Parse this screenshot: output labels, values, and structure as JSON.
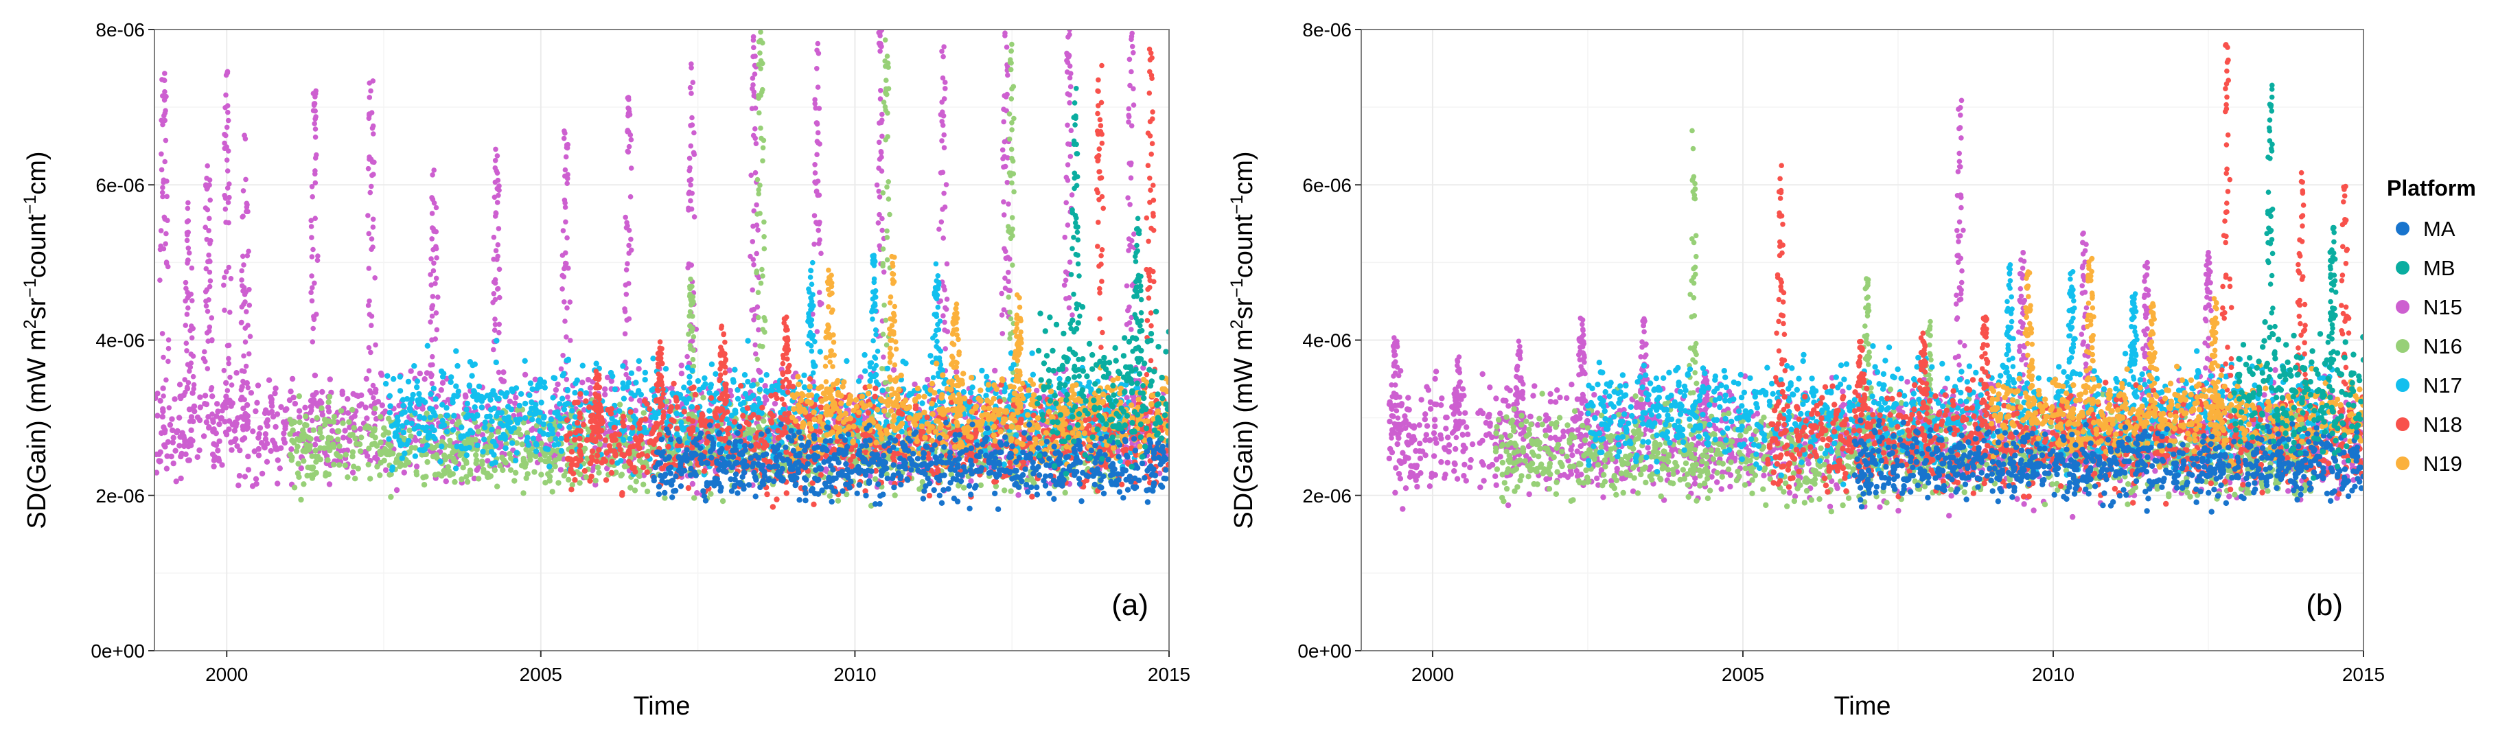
{
  "colors": {
    "MA": "#1874CD",
    "MB": "#0AADA0",
    "N15": "#CD5FD0",
    "N16": "#97D077",
    "N17": "#12BFEE",
    "N18": "#F8514B",
    "N19": "#FBB13C",
    "grid": "#EBEBEB",
    "frame": "#7F7F7F"
  },
  "legend": {
    "title": "Platform",
    "items": [
      {
        "key": "MA",
        "label": "MA"
      },
      {
        "key": "MB",
        "label": "MB"
      },
      {
        "key": "N15",
        "label": "N15"
      },
      {
        "key": "N16",
        "label": "N16"
      },
      {
        "key": "N17",
        "label": "N17"
      },
      {
        "key": "N18",
        "label": "N18"
      },
      {
        "key": "N19",
        "label": "N19"
      }
    ]
  },
  "chart_data": [
    {
      "type": "scatter",
      "panel_label": "(a)",
      "xlabel": "Time",
      "ylabel_main": "SD(Gain) (mW m",
      "ylabel_sup1": "2",
      "ylabel_mid1": "sr",
      "ylabel_sup2": "−1",
      "ylabel_mid2": "count",
      "ylabel_sup3": "−1",
      "ylabel_end": "cm)",
      "xlim": [
        1998.85,
        2015.0
      ],
      "ylim": [
        0,
        8e-06
      ],
      "x_ticks": [
        2000,
        2005,
        2010,
        2015
      ],
      "x_tick_labels": [
        "2000",
        "2005",
        "2010",
        "2015"
      ],
      "y_ticks": [
        0,
        2e-06,
        4e-06,
        6e-06,
        8e-06
      ],
      "y_tick_labels": [
        "0e+00",
        "2e-06",
        "4e-06",
        "6e-06",
        "8e-06"
      ],
      "grid": true,
      "series": [
        {
          "name": "N15",
          "x_range": [
            1998.85,
            2015.0
          ],
          "baseline": [
            2.1e-06,
            3.6e-06
          ],
          "peaks": [
            [
              1999.0,
              7.7e-06
            ],
            [
              1999.4,
              5.8e-06
            ],
            [
              1999.7,
              6.3e-06
            ],
            [
              2000.0,
              7.5e-06
            ],
            [
              2000.3,
              6.9e-06
            ],
            [
              2001.4,
              7.4e-06
            ],
            [
              2002.3,
              7.5e-06
            ],
            [
              2003.3,
              6.2e-06
            ],
            [
              2004.3,
              6.5e-06
            ],
            [
              2005.4,
              6.8e-06
            ],
            [
              2006.4,
              7.2e-06
            ],
            [
              2007.4,
              7.6e-06
            ],
            [
              2008.4,
              8e-06
            ],
            [
              2009.4,
              8e-06
            ],
            [
              2010.4,
              8e-06
            ],
            [
              2011.4,
              8e-06
            ],
            [
              2012.4,
              8e-06
            ],
            [
              2013.4,
              8e-06
            ],
            [
              2014.4,
              8e-06
            ]
          ]
        },
        {
          "name": "N16",
          "x_range": [
            2001.0,
            2014.2
          ],
          "baseline": [
            2e-06,
            3.2e-06
          ],
          "peaks": [
            [
              2007.4,
              4.8e-06
            ],
            [
              2008.5,
              8e-06
            ],
            [
              2010.5,
              7.9e-06
            ],
            [
              2012.5,
              7.9e-06
            ]
          ]
        },
        {
          "name": "N17",
          "x_range": [
            2002.5,
            2014.5
          ],
          "baseline": [
            2.3e-06,
            3.8e-06
          ],
          "peaks": [
            [
              2009.3,
              5e-06
            ],
            [
              2010.3,
              5.1e-06
            ],
            [
              2011.3,
              5e-06
            ]
          ]
        },
        {
          "name": "N18",
          "x_range": [
            2005.4,
            2015.0
          ],
          "baseline": [
            2e-06,
            3.4e-06
          ],
          "peaks": [
            [
              2005.9,
              3.6e-06
            ],
            [
              2006.9,
              4e-06
            ],
            [
              2007.9,
              4.2e-06
            ],
            [
              2008.9,
              4.3e-06
            ],
            [
              2013.9,
              7.9e-06
            ],
            [
              2014.7,
              7.8e-06
            ]
          ]
        },
        {
          "name": "N19",
          "x_range": [
            2009.0,
            2015.0
          ],
          "baseline": [
            2.4e-06,
            3.6e-06
          ],
          "peaks": [
            [
              2009.6,
              5e-06
            ],
            [
              2010.6,
              5.1e-06
            ],
            [
              2011.6,
              4.5e-06
            ],
            [
              2012.6,
              4.6e-06
            ]
          ]
        },
        {
          "name": "MA",
          "x_range": [
            2006.8,
            2015.0
          ],
          "baseline": [
            1.9e-06,
            2.9e-06
          ],
          "peaks": []
        },
        {
          "name": "MB",
          "x_range": [
            2012.9,
            2015.0
          ],
          "baseline": [
            2.3e-06,
            4.3e-06
          ],
          "peaks": [
            [
              2013.5,
              7.3e-06
            ],
            [
              2014.5,
              5.6e-06
            ]
          ]
        }
      ]
    },
    {
      "type": "scatter",
      "panel_label": "(b)",
      "xlabel": "Time",
      "ylabel_main": "SD(Gain) (mW m",
      "ylabel_sup1": "2",
      "ylabel_mid1": "sr",
      "ylabel_sup2": "−1",
      "ylabel_mid2": "count",
      "ylabel_sup3": "−1",
      "ylabel_end": "cm)",
      "xlim": [
        1998.85,
        2015.0
      ],
      "ylim": [
        0,
        8e-06
      ],
      "x_ticks": [
        2000,
        2005,
        2010,
        2015
      ],
      "x_tick_labels": [
        "2000",
        "2005",
        "2010",
        "2015"
      ],
      "y_ticks": [
        0,
        2e-06,
        4e-06,
        6e-06,
        8e-06
      ],
      "y_tick_labels": [
        "0e+00",
        "2e-06",
        "4e-06",
        "6e-06",
        "8e-06"
      ],
      "grid": true,
      "series": [
        {
          "name": "N15",
          "x_range": [
            1999.3,
            2015.0
          ],
          "baseline": [
            1.9e-06,
            3.5e-06
          ],
          "peaks": [
            [
              1999.4,
              4.1e-06
            ],
            [
              2000.4,
              3.8e-06
            ],
            [
              2001.4,
              4e-06
            ],
            [
              2002.4,
              4.3e-06
            ],
            [
              2003.4,
              4.3e-06
            ],
            [
              2004.4,
              3.6e-06
            ],
            [
              2008.5,
              7.1e-06
            ],
            [
              2009.5,
              5.2e-06
            ],
            [
              2010.5,
              5.4e-06
            ],
            [
              2011.5,
              5e-06
            ],
            [
              2012.5,
              5.2e-06
            ]
          ]
        },
        {
          "name": "N16",
          "x_range": [
            2001.0,
            2014.2
          ],
          "baseline": [
            1.9e-06,
            3.2e-06
          ],
          "peaks": [
            [
              2004.2,
              6.7e-06
            ],
            [
              2007.0,
              4.8e-06
            ],
            [
              2008.0,
              4.3e-06
            ]
          ]
        },
        {
          "name": "N17",
          "x_range": [
            2002.5,
            2014.5
          ],
          "baseline": [
            2.3e-06,
            3.8e-06
          ],
          "peaks": [
            [
              2009.3,
              5e-06
            ],
            [
              2010.3,
              4.9e-06
            ],
            [
              2011.3,
              4.6e-06
            ]
          ]
        },
        {
          "name": "N18",
          "x_range": [
            2005.4,
            2015.0
          ],
          "baseline": [
            2e-06,
            3.4e-06
          ],
          "peaks": [
            [
              2005.6,
              6.3e-06
            ],
            [
              2006.9,
              4e-06
            ],
            [
              2007.9,
              4.1e-06
            ],
            [
              2008.9,
              4.3e-06
            ],
            [
              2012.8,
              7.9e-06
            ],
            [
              2014.0,
              6.2e-06
            ],
            [
              2014.7,
              6e-06
            ]
          ]
        },
        {
          "name": "N19",
          "x_range": [
            2009.0,
            2015.0
          ],
          "baseline": [
            2.4e-06,
            3.6e-06
          ],
          "peaks": [
            [
              2009.6,
              4.9e-06
            ],
            [
              2010.6,
              5.1e-06
            ],
            [
              2011.6,
              4.5e-06
            ],
            [
              2012.6,
              4.6e-06
            ]
          ]
        },
        {
          "name": "MA",
          "x_range": [
            2006.8,
            2015.0
          ],
          "baseline": [
            1.9e-06,
            2.9e-06
          ],
          "peaks": []
        },
        {
          "name": "MB",
          "x_range": [
            2012.9,
            2015.0
          ],
          "baseline": [
            2.3e-06,
            4.3e-06
          ],
          "peaks": [
            [
              2013.5,
              7.3e-06
            ],
            [
              2014.5,
              5.5e-06
            ]
          ]
        }
      ]
    }
  ]
}
